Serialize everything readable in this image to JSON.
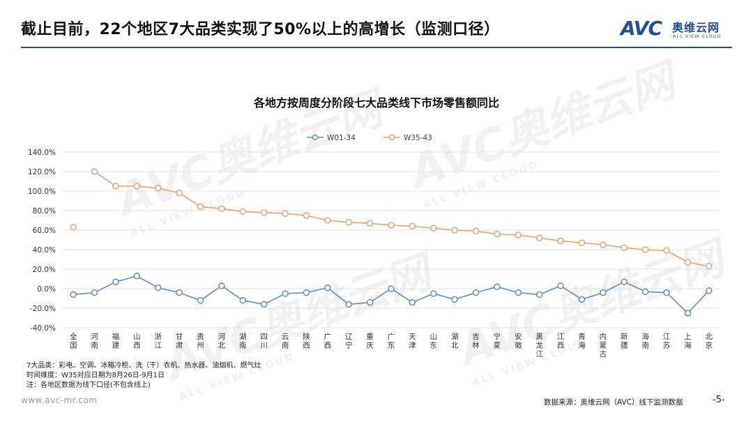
{
  "header": {
    "title": "截止目前，22个地区7大品类实现了50%以上的高增长（监测口径）",
    "logo_mark": "AVC",
    "logo_cn": "奥维云网",
    "logo_en": "ALL VIEW CLOUD"
  },
  "watermark": {
    "mark": "AVC奥维云网",
    "sub": "ALL VIEW CLOUD"
  },
  "colors": {
    "accent": "#1f4f9c",
    "series_w01_34": "#5b8ec9",
    "series_w35_43": "#eea26a",
    "grid": "#e3e3e3"
  },
  "chart_data": {
    "type": "line",
    "title": "各地方按周度分阶段七大品类线下市场零售额同比",
    "legend_position": "top-center",
    "grid": true,
    "y_unit": "percent",
    "ylim": [
      -40,
      140
    ],
    "yticks": [
      "140.0%",
      "120.0%",
      "100.0%",
      "80.0%",
      "60.0%",
      "40.0%",
      "20.0%",
      "0.0%",
      "-20.0%",
      "-40.0%"
    ],
    "ytick_values": [
      140,
      120,
      100,
      80,
      60,
      40,
      20,
      0,
      -20,
      -40
    ],
    "categories": [
      "全国",
      "河南",
      "福建",
      "山西",
      "浙江",
      "甘肃",
      "贵州",
      "河北",
      "湖南",
      "四川",
      "云南",
      "陕西",
      "广西",
      "辽宁",
      "重庆",
      "广东",
      "天津",
      "山东",
      "湖北",
      "吉林",
      "宁夏",
      "安徽",
      "黑龙江",
      "江西",
      "青海",
      "内蒙古",
      "新疆",
      "海南",
      "江苏",
      "上海",
      "北京"
    ],
    "series": [
      {
        "name": "W01-34",
        "color": "#5b8ec9",
        "values": [
          -6,
          -4,
          7,
          13,
          1,
          -4,
          -12,
          3,
          -12,
          -16,
          -5,
          -4,
          1,
          -16,
          -14,
          0,
          -14,
          -5,
          -11,
          -4,
          2,
          -4,
          -6,
          3,
          -11,
          -4,
          7,
          -3,
          -4,
          -25,
          -2
        ]
      },
      {
        "name": "W35-43",
        "color": "#eea26a",
        "values": [
          63,
          120,
          105,
          105,
          103,
          98,
          84,
          82,
          79,
          78,
          77,
          75,
          70,
          68,
          67,
          65,
          64,
          62,
          60,
          59,
          56,
          55,
          52,
          49,
          47,
          45,
          42,
          40,
          39,
          27,
          23
        ]
      }
    ]
  },
  "notes": [
    "7大品类：彩电、空调、冰箱冷柜、洗（干）衣机、热水器、油烟机、燃气灶",
    "时间维度：W35对应日期为8月26日-9月1日",
    "注：各地区数据为线下口径(不包含线上)"
  ],
  "footer": {
    "site": "www.avc-mr.com",
    "source": "数据来源：奥维云网（AVC）线下监测数据",
    "page": "-5-"
  }
}
